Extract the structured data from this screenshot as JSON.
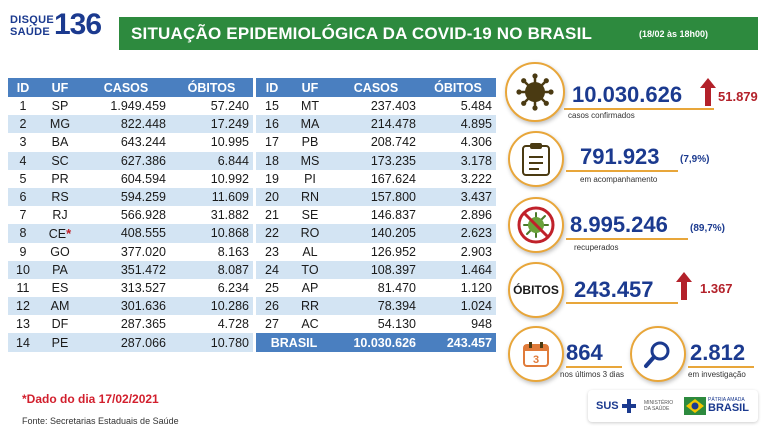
{
  "header": {
    "logo_words": [
      "DISQUE",
      "SAÚDE"
    ],
    "logo_number": "136",
    "title": "SITUAÇÃO EPIDEMIOLÓGICA DA COVID-19 NO BRASIL",
    "date": "(18/02 às 18h00)"
  },
  "columns": [
    "ID",
    "UF",
    "CASOS",
    "ÓBITOS"
  ],
  "table_left": [
    {
      "id": "1",
      "uf": "SP",
      "casos": "1.949.459",
      "obitos": "57.240"
    },
    {
      "id": "2",
      "uf": "MG",
      "casos": "822.448",
      "obitos": "17.249"
    },
    {
      "id": "3",
      "uf": "BA",
      "casos": "643.244",
      "obitos": "10.995"
    },
    {
      "id": "4",
      "uf": "SC",
      "casos": "627.386",
      "obitos": "6.844"
    },
    {
      "id": "5",
      "uf": "PR",
      "casos": "604.594",
      "obitos": "10.992"
    },
    {
      "id": "6",
      "uf": "RS",
      "casos": "594.259",
      "obitos": "11.609"
    },
    {
      "id": "7",
      "uf": "RJ",
      "casos": "566.928",
      "obitos": "31.882"
    },
    {
      "id": "8",
      "uf": "CE",
      "star": "*",
      "casos": "408.555",
      "obitos": "10.868"
    },
    {
      "id": "9",
      "uf": "GO",
      "casos": "377.020",
      "obitos": "8.163"
    },
    {
      "id": "10",
      "uf": "PA",
      "casos": "351.472",
      "obitos": "8.087"
    },
    {
      "id": "11",
      "uf": "ES",
      "casos": "313.527",
      "obitos": "6.234"
    },
    {
      "id": "12",
      "uf": "AM",
      "casos": "301.636",
      "obitos": "10.286"
    },
    {
      "id": "13",
      "uf": "DF",
      "casos": "287.365",
      "obitos": "4.728"
    },
    {
      "id": "14",
      "uf": "PE",
      "casos": "287.066",
      "obitos": "10.780"
    }
  ],
  "table_right": [
    {
      "id": "15",
      "uf": "MT",
      "casos": "237.403",
      "obitos": "5.484"
    },
    {
      "id": "16",
      "uf": "MA",
      "casos": "214.478",
      "obitos": "4.895"
    },
    {
      "id": "17",
      "uf": "PB",
      "casos": "208.742",
      "obitos": "4.306"
    },
    {
      "id": "18",
      "uf": "MS",
      "casos": "173.235",
      "obitos": "3.178"
    },
    {
      "id": "19",
      "uf": "PI",
      "casos": "167.624",
      "obitos": "3.222"
    },
    {
      "id": "20",
      "uf": "RN",
      "casos": "157.800",
      "obitos": "3.437"
    },
    {
      "id": "21",
      "uf": "SE",
      "casos": "146.837",
      "obitos": "2.896"
    },
    {
      "id": "22",
      "uf": "RO",
      "casos": "140.205",
      "obitos": "2.623"
    },
    {
      "id": "23",
      "uf": "AL",
      "casos": "126.952",
      "obitos": "2.903"
    },
    {
      "id": "24",
      "uf": "TO",
      "casos": "108.397",
      "obitos": "1.464"
    },
    {
      "id": "25",
      "uf": "AP",
      "casos": "81.470",
      "obitos": "1.120"
    },
    {
      "id": "26",
      "uf": "RR",
      "casos": "78.394",
      "obitos": "1.024"
    },
    {
      "id": "27",
      "uf": "AC",
      "casos": "54.130",
      "obitos": "948"
    }
  ],
  "total": {
    "label": "BRASIL",
    "casos": "10.030.626",
    "obitos": "243.457"
  },
  "stats": {
    "confirmed": {
      "value": "10.030.626",
      "delta": "51.879",
      "label": "casos confirmados",
      "icon": "virus-icon"
    },
    "following": {
      "value": "791.923",
      "pct": "(7,9%)",
      "label": "em acompanhamento",
      "icon": "clipboard-icon"
    },
    "recovered": {
      "value": "8.995.246",
      "pct": "(89,7%)",
      "label": "recuperados",
      "icon": "crossed-virus-icon"
    },
    "deaths": {
      "badge": "ÓBITOS",
      "value": "243.457",
      "delta": "1.367"
    },
    "last3days": {
      "value": "864",
      "label": "nos últimos 3 dias",
      "calendar_day": "3",
      "icon": "calendar-icon"
    },
    "investigation": {
      "value": "2.812",
      "label": "em investigação",
      "icon": "magnifier-icon"
    }
  },
  "footer": {
    "note": "*Dado do dia 17/02/2021",
    "source": "Fonte: Secretarias Estaduais de Saúde",
    "sus": "SUS",
    "ministry": "MINISTÉRIO DA SAÚDE",
    "brasil_top": "PÁTRIA AMADA",
    "brasil": "BRASIL"
  },
  "colors": {
    "accent_green": "#2d8a3e",
    "table_header_blue": "#4a7fc0",
    "row_blue": "#d3e4f3",
    "number_navy": "#1b3a8f",
    "alert_red": "#b3212a",
    "ring_orange": "#e8a63a"
  }
}
